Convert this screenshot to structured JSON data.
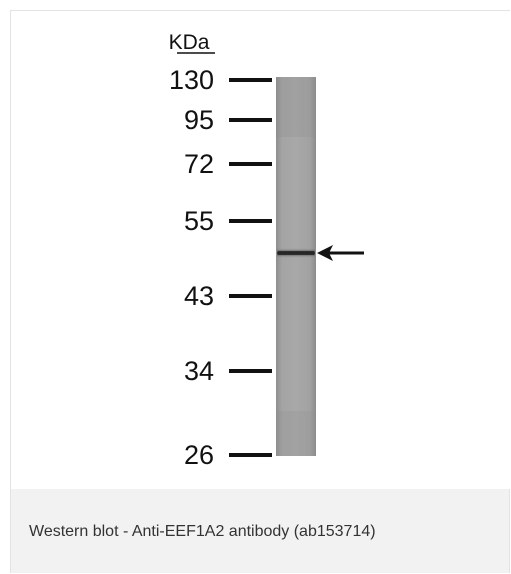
{
  "figure": {
    "unit_label": "KDa",
    "markers": [
      "130",
      "95",
      "72",
      "55",
      "43",
      "34",
      "26"
    ],
    "lane_color": "#9c9c9c",
    "band_color": "#2a2a2a",
    "ink_color": "#111111"
  },
  "caption": {
    "text": "Western blot - Anti-EEF1A2 antibody (ab153714)"
  }
}
